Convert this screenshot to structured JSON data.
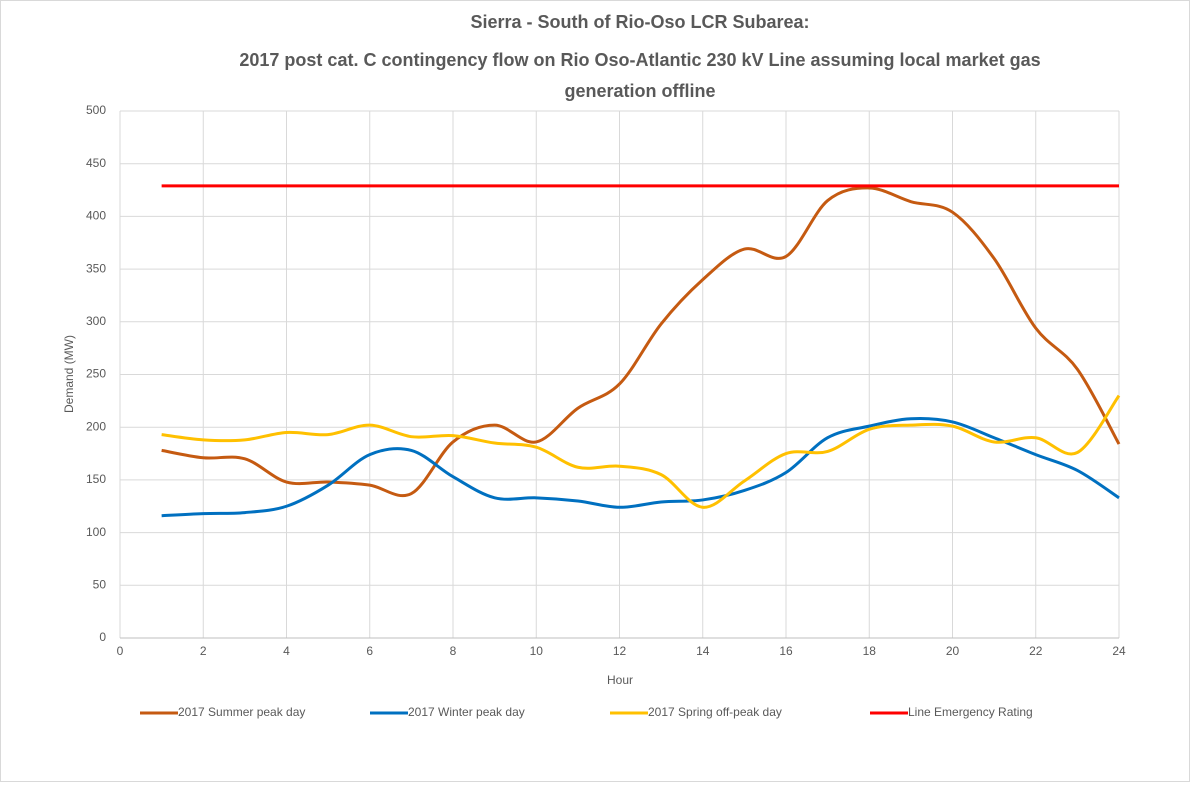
{
  "chart_data": {
    "type": "line",
    "title": [
      "Sierra - South of Rio-Oso LCR Subarea:",
      "2017 post cat. C contingency flow on Rio Oso-Atlantic 230 kV Line assuming local market gas",
      "generation offline"
    ],
    "xlabel": "Hour",
    "ylabel": "Demand (MW)",
    "x": [
      1,
      2,
      3,
      4,
      5,
      6,
      7,
      8,
      9,
      10,
      11,
      12,
      13,
      14,
      15,
      16,
      17,
      18,
      19,
      20,
      21,
      22,
      23,
      24
    ],
    "series": [
      {
        "name": "2017 Summer peak day",
        "color": "#c55a11",
        "values": [
          178,
          171,
          170,
          148,
          148,
          145,
          137,
          186,
          202,
          186,
          218,
          241,
          298,
          340,
          369,
          362,
          415,
          427,
          414,
          404,
          360,
          294,
          255,
          184
        ]
      },
      {
        "name": "2017 Winter peak day",
        "color": "#0070c0",
        "values": [
          116,
          118,
          119,
          125,
          145,
          174,
          178,
          153,
          133,
          133,
          130,
          124,
          129,
          131,
          140,
          157,
          190,
          201,
          208,
          205,
          190,
          174,
          159,
          133
        ]
      },
      {
        "name": "2017 Spring off-peak day",
        "color": "#ffc000",
        "values": [
          193,
          188,
          188,
          195,
          193,
          202,
          191,
          192,
          185,
          181,
          162,
          163,
          155,
          124,
          149,
          175,
          177,
          198,
          202,
          201,
          186,
          190,
          176,
          230
        ]
      },
      {
        "name": "Line Emergency Rating",
        "color": "#ff0000",
        "values": [
          429,
          429,
          429,
          429,
          429,
          429,
          429,
          429,
          429,
          429,
          429,
          429,
          429,
          429,
          429,
          429,
          429,
          429,
          429,
          429,
          429,
          429,
          429,
          429
        ]
      }
    ],
    "xlim": [
      0,
      24
    ],
    "xticks": [
      0,
      2,
      4,
      6,
      8,
      10,
      12,
      14,
      16,
      18,
      20,
      22,
      24
    ],
    "ylim": [
      0,
      500
    ],
    "yticks": [
      0,
      50,
      100,
      150,
      200,
      250,
      300,
      350,
      400,
      450,
      500
    ],
    "grid": true,
    "legend": "bottom"
  }
}
